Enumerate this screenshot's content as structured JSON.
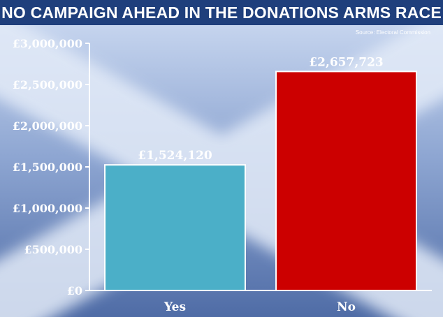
{
  "header": {
    "title": "NO CAMPAIGN AHEAD IN THE DONATIONS ARMS RACE"
  },
  "source": "Source: Electoral Commission",
  "colors": {
    "header_bg": "#1f3f7c",
    "background_light": "#c5d4ee",
    "background_mid": "#7e97c5",
    "background_dark": "#4f6ca6",
    "saltire": "#e3ebf8",
    "yes_bar": "#4bafc8",
    "no_bar": "#cc0000",
    "axis": "#ffffff"
  },
  "chart_data": {
    "type": "bar",
    "title": "NO CAMPAIGN AHEAD IN THE DONATIONS ARMS RACE",
    "categories": [
      "Yes",
      "No"
    ],
    "values": [
      1524120,
      2657723
    ],
    "data_labels": [
      "£1,524,120",
      "£2,657,723"
    ],
    "bar_colors": [
      "#4bafc8",
      "#cc0000"
    ],
    "ylim": [
      0,
      3000000
    ],
    "yticks": [
      0,
      500000,
      1000000,
      1500000,
      2000000,
      2500000,
      3000000
    ],
    "ytick_labels": [
      "£0",
      "£500,000",
      "£1,000,000",
      "£1,500,000",
      "£2,000,000",
      "£2,500,000",
      "£3,000,000"
    ],
    "xlabel": "",
    "ylabel": "",
    "grid": false,
    "legend": "none"
  }
}
